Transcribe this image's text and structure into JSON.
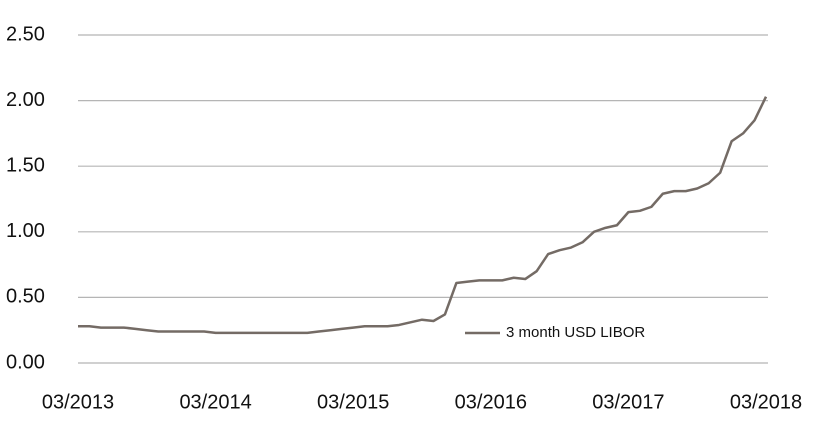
{
  "chart_data": {
    "type": "line",
    "x": [
      "03/2013",
      "04/2013",
      "05/2013",
      "06/2013",
      "07/2013",
      "08/2013",
      "09/2013",
      "10/2013",
      "11/2013",
      "12/2013",
      "01/2014",
      "02/2014",
      "03/2014",
      "04/2014",
      "05/2014",
      "06/2014",
      "07/2014",
      "08/2014",
      "09/2014",
      "10/2014",
      "11/2014",
      "12/2014",
      "01/2015",
      "02/2015",
      "03/2015",
      "04/2015",
      "05/2015",
      "06/2015",
      "07/2015",
      "08/2015",
      "09/2015",
      "10/2015",
      "11/2015",
      "12/2015",
      "01/2016",
      "02/2016",
      "03/2016",
      "04/2016",
      "05/2016",
      "06/2016",
      "07/2016",
      "08/2016",
      "09/2016",
      "10/2016",
      "11/2016",
      "12/2016",
      "01/2017",
      "02/2017",
      "03/2017",
      "04/2017",
      "05/2017",
      "06/2017",
      "07/2017",
      "08/2017",
      "09/2017",
      "10/2017",
      "11/2017",
      "12/2017",
      "01/2018",
      "02/2018",
      "03/2018"
    ],
    "series": [
      {
        "name": "3 month USD LIBOR",
        "color": "#746b65",
        "values": [
          0.28,
          0.28,
          0.27,
          0.27,
          0.27,
          0.26,
          0.25,
          0.24,
          0.24,
          0.24,
          0.24,
          0.24,
          0.23,
          0.23,
          0.23,
          0.23,
          0.23,
          0.23,
          0.23,
          0.23,
          0.23,
          0.24,
          0.25,
          0.26,
          0.27,
          0.28,
          0.28,
          0.28,
          0.29,
          0.31,
          0.33,
          0.32,
          0.37,
          0.61,
          0.62,
          0.63,
          0.63,
          0.63,
          0.65,
          0.64,
          0.7,
          0.83,
          0.86,
          0.88,
          0.92,
          1.0,
          1.03,
          1.05,
          1.15,
          1.16,
          1.19,
          1.29,
          1.31,
          1.31,
          1.33,
          1.37,
          1.45,
          1.69,
          1.75,
          1.85,
          2.03
        ]
      }
    ],
    "xticks": [
      "03/2013",
      "03/2014",
      "03/2015",
      "03/2016",
      "03/2017",
      "03/2018"
    ],
    "ylim": [
      0,
      2.5
    ],
    "yticks": [
      {
        "value": 0,
        "label": "0.00"
      },
      {
        "value": 0.5,
        "label": "0.50"
      },
      {
        "value": 1,
        "label": "1.00"
      },
      {
        "value": 1.5,
        "label": "1.50"
      },
      {
        "value": 2,
        "label": "2.00"
      },
      {
        "value": 2.5,
        "label": "2.50"
      }
    ],
    "grid": true
  }
}
